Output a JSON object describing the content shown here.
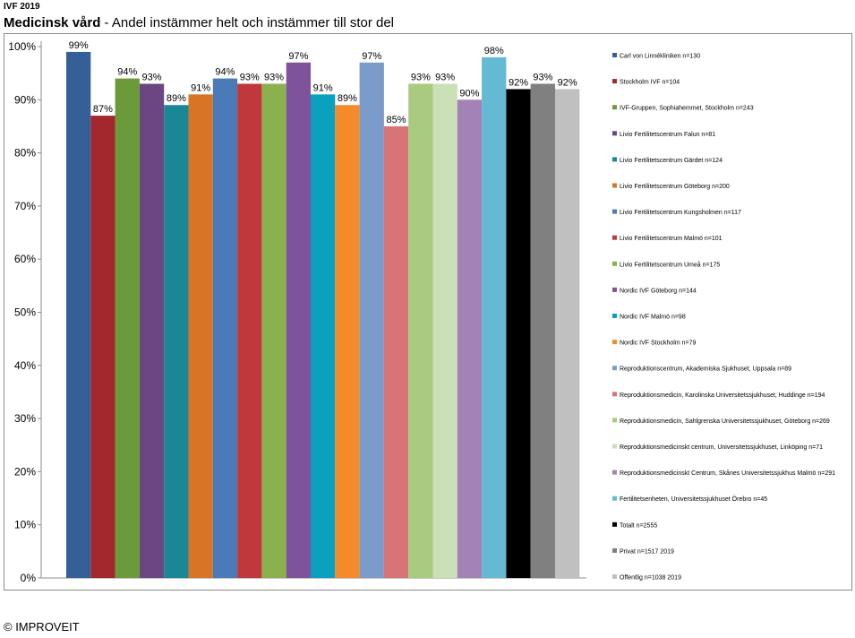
{
  "header": {
    "top_label": "IVF 2019",
    "title_bold": "Medicinsk vård",
    "title_rest": " - Andel instämmer helt och instämmer till stor del"
  },
  "footer": {
    "copyright": "© IMPROVEIT"
  },
  "chart_data": {
    "type": "bar",
    "title": "Medicinsk vård - Andel instämmer helt och instämmer till stor del",
    "ylim": [
      0,
      100
    ],
    "y_ticks": [
      "0%",
      "10%",
      "20%",
      "30%",
      "40%",
      "50%",
      "60%",
      "70%",
      "80%",
      "90%",
      "100%"
    ],
    "grid": false,
    "legend_position": "right",
    "series": [
      {
        "name": "Carl von Linnékliniken n=130",
        "value": 99,
        "label": "99%",
        "color": "#345f97"
      },
      {
        "name": "Stockholm IVF n=104",
        "value": 87,
        "label": "87%",
        "color": "#a3282e"
      },
      {
        "name": "IVF-Gruppen, Sophiahemmet, Stockholm n=243",
        "value": 94,
        "label": "94%",
        "color": "#6b9a3b"
      },
      {
        "name": "Livio Fertilitetscentrum Falun n=81",
        "value": 93,
        "label": "93%",
        "color": "#6a4782"
      },
      {
        "name": "Livio Fertilitetscentrum Gärdet n=124",
        "value": 89,
        "label": "89%",
        "color": "#1a8797"
      },
      {
        "name": "Livio Fertilitetscentrum Göteborg n=200",
        "value": 91,
        "label": "91%",
        "color": "#d87426"
      },
      {
        "name": "Livio Fertilitetscentrum Kungsholmen n=117",
        "value": 94,
        "label": "94%",
        "color": "#4a7ab8"
      },
      {
        "name": "Livio Fertilitetscentrum Malmö n=101",
        "value": 93,
        "label": "93%",
        "color": "#c0373c"
      },
      {
        "name": "Livio Fertilitetscentrum Umeå n=175",
        "value": 93,
        "label": "93%",
        "color": "#8ab14d"
      },
      {
        "name": "Nordic IVF Göteborg n=144",
        "value": 97,
        "label": "97%",
        "color": "#7f539c"
      },
      {
        "name": "Nordic IVF Malmö n=98",
        "value": 91,
        "label": "91%",
        "color": "#0aa1bf"
      },
      {
        "name": "Nordic IVF Stockholm n=79",
        "value": 89,
        "label": "89%",
        "color": "#f58a2b"
      },
      {
        "name": "Reproduktionscentrum, Akademiska Sjukhuset, Uppsala n=89",
        "value": 97,
        "label": "97%",
        "color": "#7b9ccb"
      },
      {
        "name": "Reproduktionsmedicin, Karolinska Universitetssjukhuset, Huddinge n=194",
        "value": 85,
        "label": "85%",
        "color": "#d87476"
      },
      {
        "name": "Reproduktionsmedicin, Sahlgrenska Universitetssjukhuset, Göteborg n=269",
        "value": 93,
        "label": "93%",
        "color": "#a8cb7f"
      },
      {
        "name": "Reproduktionsmedicinskt centrum, Universitetssjukhuset, Linköping n=71",
        "value": 93,
        "label": "93%",
        "color": "#cbe0b7"
      },
      {
        "name": "Reproduktionsmedicinskt Centrum, Skånes Universitetssjukhus Malmö n=291",
        "value": 90,
        "label": "90%",
        "color": "#a481b7"
      },
      {
        "name": "Fertilitetsenheten, Universitetssjukhuset Örebro n=45",
        "value": 98,
        "label": "98%",
        "color": "#65bad3"
      },
      {
        "name": "Totalt n=2555",
        "value": 92,
        "label": "92%",
        "color": "#000000"
      },
      {
        "name": "Privat n=1517 2019",
        "value": 93,
        "label": "93%",
        "color": "#808080"
      },
      {
        "name": "Offentlig n=1038 2019",
        "value": 92,
        "label": "92%",
        "color": "#c0c0c0"
      }
    ]
  }
}
